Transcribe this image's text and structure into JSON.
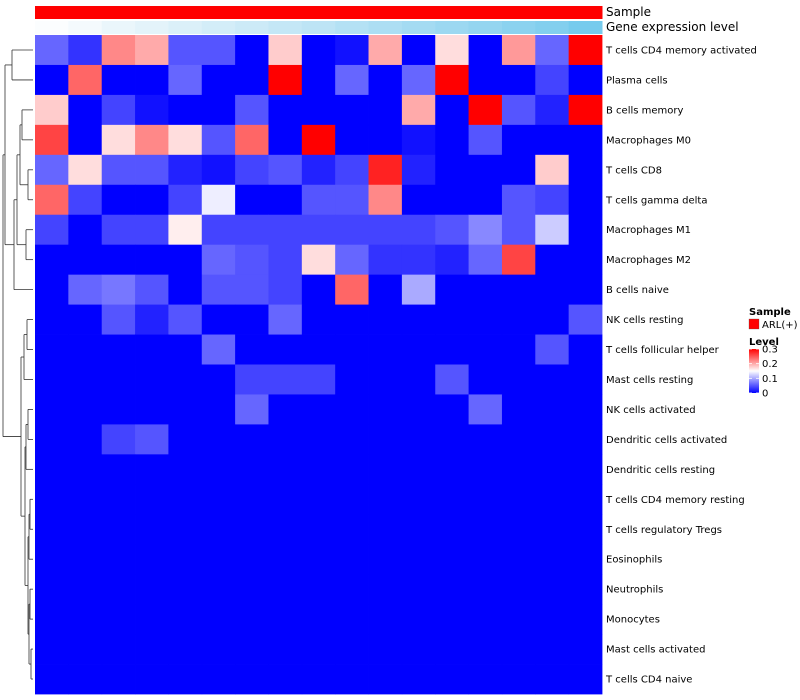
{
  "chart_data": {
    "type": "heatmap",
    "columns": 17,
    "annotations": [
      {
        "name": "Sample",
        "colors": [
          "#ff0000",
          "#ff0000",
          "#ff0000",
          "#ff0000",
          "#ff0000",
          "#ff0000",
          "#ff0000",
          "#ff0000",
          "#ff0000",
          "#ff0000",
          "#ff0000",
          "#ff0000",
          "#ff0000",
          "#ff0000",
          "#ff0000",
          "#ff0000",
          "#ff0000"
        ]
      },
      {
        "name": "Gene expression level",
        "colors": [
          "#fbfdfe",
          "#f4fafd",
          "#eaf6fb",
          "#e3f3fa",
          "#dbf0f9",
          "#d3edf8",
          "#cceaf7",
          "#c4e7f6",
          "#bde4f5",
          "#b4e1f4",
          "#acdef3",
          "#a4dbf2",
          "#9cd8f1",
          "#94d5f0",
          "#8bd2ef",
          "#83cfee",
          "#76cbed"
        ]
      }
    ],
    "rows": [
      {
        "label": "T cells CD4 memory activated",
        "values": [
          0.06,
          0.03,
          0.22,
          0.2,
          0.05,
          0.05,
          -0.08,
          0.18,
          -0.07,
          0.01,
          0.2,
          -0.08,
          0.17,
          -0.1,
          0.21,
          0.06,
          0.34
        ]
      },
      {
        "label": "Plasma cells",
        "values": [
          -0.1,
          0.24,
          -0.1,
          -0.1,
          0.06,
          -0.1,
          -0.1,
          0.36,
          -0.07,
          0.06,
          -0.05,
          0.06,
          0.36,
          -0.1,
          -0.03,
          0.04,
          -0.02
        ]
      },
      {
        "label": "B cells memory",
        "values": [
          0.18,
          -0.04,
          0.04,
          0.01,
          -0.02,
          -0.02,
          0.05,
          -0.1,
          -0.1,
          -0.1,
          -0.04,
          0.2,
          -0.1,
          0.36,
          0.05,
          0.02,
          0.36
        ]
      },
      {
        "label": "Macrophages M0",
        "values": [
          0.26,
          -0.1,
          0.17,
          0.22,
          0.17,
          0.05,
          0.24,
          -0.1,
          0.35,
          -0.03,
          -0.03,
          0.01,
          -0.1,
          0.05,
          -0.1,
          -0.03,
          -0.05
        ]
      },
      {
        "label": "T cells CD8",
        "values": [
          0.06,
          0.17,
          0.05,
          0.05,
          0.02,
          0.01,
          0.04,
          0.05,
          0.02,
          0.04,
          0.28,
          0.02,
          -0.05,
          -0.07,
          -0.1,
          0.18,
          -0.1
        ]
      },
      {
        "label": "T cells gamma delta",
        "values": [
          0.24,
          0.04,
          -0.04,
          -0.08,
          0.04,
          0.14,
          -0.03,
          -0.04,
          0.05,
          0.05,
          0.22,
          -0.03,
          -0.03,
          -0.1,
          0.05,
          0.04,
          -0.1
        ]
      },
      {
        "label": "Macrophages M1",
        "values": [
          0.04,
          -0.03,
          0.04,
          0.04,
          0.16,
          0.04,
          0.04,
          0.04,
          0.04,
          0.04,
          0.04,
          0.04,
          0.05,
          0.08,
          0.05,
          0.12,
          -0.1
        ]
      },
      {
        "label": "Macrophages M2",
        "values": [
          -0.07,
          -0.02,
          -0.08,
          -0.09,
          -0.04,
          0.06,
          0.05,
          0.04,
          0.17,
          0.06,
          0.03,
          0.03,
          0.02,
          0.06,
          0.26,
          -0.02,
          -0.05
        ]
      },
      {
        "label": "B cells naive",
        "values": [
          -0.1,
          0.06,
          0.07,
          0.05,
          -0.1,
          0.05,
          0.05,
          0.04,
          -0.08,
          0.24,
          -0.1,
          0.1,
          -0.08,
          -0.1,
          -0.1,
          -0.1,
          -0.1
        ]
      },
      {
        "label": "NK cells resting",
        "values": [
          -0.1,
          -0.1,
          0.05,
          0.02,
          0.05,
          -0.1,
          -0.1,
          0.06,
          -0.1,
          -0.08,
          -0.1,
          -0.1,
          -0.04,
          -0.1,
          -0.04,
          -0.1,
          0.05
        ]
      },
      {
        "label": "T cells follicular helper",
        "values": [
          -0.1,
          -0.07,
          -0.06,
          -0.07,
          -0.08,
          0.06,
          -0.02,
          -0.1,
          -0.06,
          -0.06,
          -0.06,
          -0.02,
          -0.1,
          -0.07,
          -0.08,
          0.05,
          -0.08
        ]
      },
      {
        "label": "Mast cells resting",
        "values": [
          -0.07,
          -0.07,
          -0.09,
          -0.1,
          -0.07,
          -0.09,
          0.04,
          0.04,
          0.04,
          -0.05,
          -0.05,
          -0.1,
          0.05,
          -0.07,
          -0.01,
          -0.07,
          -0.05
        ]
      },
      {
        "label": "NK cells activated",
        "values": [
          -0.1,
          -0.1,
          -0.1,
          -0.1,
          -0.1,
          -0.08,
          0.06,
          -0.1,
          -0.06,
          -0.1,
          -0.08,
          -0.1,
          -0.08,
          0.06,
          -0.1,
          -0.09,
          -0.1
        ]
      },
      {
        "label": "Dendritic cells activated",
        "values": [
          -0.1,
          -0.1,
          0.04,
          0.05,
          -0.06,
          -0.1,
          -0.1,
          -0.1,
          -0.09,
          -0.1,
          -0.1,
          -0.1,
          -0.1,
          -0.1,
          -0.1,
          -0.1,
          -0.1
        ]
      },
      {
        "label": "Dendritic cells resting",
        "values": [
          -0.1,
          -0.08,
          -0.1,
          -0.1,
          -0.1,
          -0.06,
          -0.09,
          -0.08,
          -0.09,
          -0.1,
          -0.08,
          -0.1,
          -0.1,
          -0.1,
          -0.06,
          -0.06,
          -0.07
        ]
      },
      {
        "label": "T cells CD4 memory resting",
        "values": [
          -0.1,
          -0.1,
          -0.1,
          -0.1,
          -0.1,
          -0.1,
          -0.06,
          -0.1,
          -0.1,
          -0.1,
          -0.1,
          -0.1,
          -0.09,
          -0.06,
          -0.04,
          -0.07,
          -0.1
        ]
      },
      {
        "label": "T cells regulatory  Tregs",
        "values": [
          -0.04,
          -0.1,
          -0.1,
          -0.1,
          -0.1,
          -0.1,
          -0.1,
          -0.1,
          -0.1,
          -0.1,
          -0.08,
          -0.1,
          -0.04,
          -0.1,
          -0.1,
          -0.1,
          -0.08
        ]
      },
      {
        "label": "Eosinophils",
        "values": [
          -0.1,
          -0.08,
          -0.1,
          -0.1,
          -0.1,
          -0.1,
          -0.1,
          -0.06,
          -0.06,
          -0.1,
          -0.1,
          -0.1,
          -0.06,
          -0.1,
          -0.1,
          -0.1,
          -0.07
        ]
      },
      {
        "label": "Neutrophils",
        "values": [
          -0.08,
          -0.07,
          -0.08,
          -0.08,
          -0.1,
          -0.1,
          -0.08,
          -0.08,
          -0.06,
          -0.09,
          -0.09,
          -0.1,
          -0.07,
          -0.1,
          -0.06,
          -0.1,
          -0.1
        ]
      },
      {
        "label": "Monocytes",
        "values": [
          -0.1,
          -0.1,
          -0.1,
          -0.1,
          -0.1,
          -0.1,
          -0.1,
          -0.1,
          -0.07,
          -0.1,
          -0.1,
          -0.08,
          -0.08,
          -0.07,
          -0.06,
          -0.1,
          -0.07
        ]
      },
      {
        "label": "Mast cells activated",
        "values": [
          -0.1,
          -0.1,
          -0.1,
          -0.07,
          -0.1,
          -0.1,
          -0.1,
          -0.1,
          -0.1,
          -0.1,
          -0.1,
          -0.07,
          -0.1,
          -0.1,
          -0.1,
          -0.1,
          -0.1
        ]
      },
      {
        "label": "T cells CD4 naive",
        "values": [
          -0.1,
          -0.1,
          -0.1,
          -0.1,
          -0.07,
          -0.1,
          -0.1,
          -0.08,
          -0.1,
          -0.1,
          -0.1,
          -0.1,
          -0.1,
          -0.1,
          -0.1,
          -0.1,
          -0.1
        ]
      }
    ],
    "color_scale": {
      "low": "#0000ff",
      "mid": "#ffffff",
      "high": "#ff0000",
      "breaks": [
        0,
        0.15,
        0.3
      ]
    },
    "legend": {
      "sample_title": "Sample",
      "sample_entry": "ARL(+)",
      "sample_color": "#ff0000",
      "level_title": "Level",
      "level_ticks": [
        "0.3",
        "0.2",
        "0.1",
        "0"
      ],
      "level_tick_values": [
        0.3,
        0.2,
        0.1,
        0
      ]
    }
  }
}
